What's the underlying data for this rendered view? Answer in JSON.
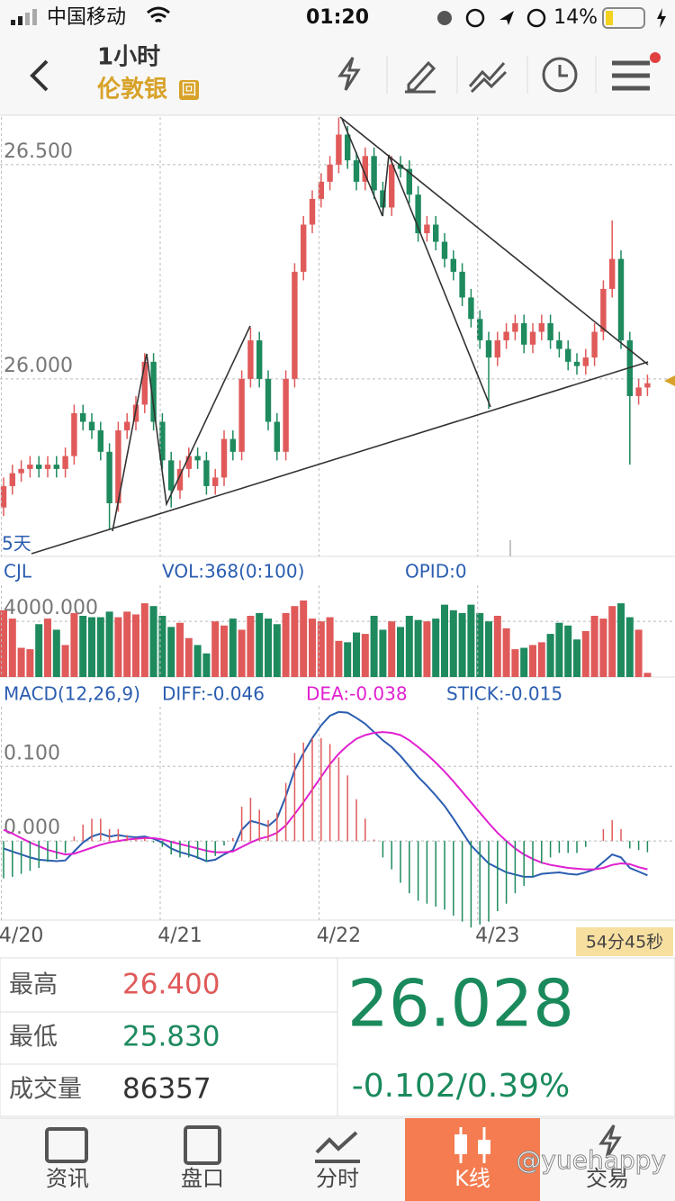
{
  "status_bar": {
    "carrier": "中国移动",
    "time": "01:20",
    "battery": "14%"
  },
  "header": {
    "interval": "1小时",
    "symbol": "伦敦银",
    "symbol_badge": "回"
  },
  "chart_data": [
    {
      "type": "candlestick",
      "label": "5天",
      "up_color": "#e05a5a",
      "down_color": "#1e8a5e",
      "open": [
        25.7,
        25.75,
        25.78,
        25.79,
        25.8,
        25.79,
        25.8,
        25.79,
        25.82,
        25.92,
        25.9,
        25.88,
        25.83,
        25.71,
        25.88,
        25.9,
        25.94,
        26.04,
        25.9,
        25.81,
        25.74,
        25.79,
        25.82,
        25.81,
        25.75,
        25.77,
        25.86,
        25.83,
        26.0,
        26.09,
        26.0,
        25.9,
        25.83,
        26.0,
        26.25,
        26.36,
        26.42,
        26.46,
        26.5,
        26.57,
        26.51,
        26.46,
        26.52,
        26.44,
        26.4,
        26.5,
        26.49,
        26.43,
        26.34,
        26.36,
        26.32,
        26.28,
        26.25,
        26.19,
        26.14,
        26.09,
        26.05,
        26.09,
        26.11,
        26.13,
        26.08,
        26.11,
        26.13,
        26.09,
        26.07,
        26.04,
        26.03,
        26.05,
        26.11,
        26.21,
        26.28,
        26.09,
        25.96,
        25.98
      ],
      "high": [
        25.77,
        25.8,
        25.81,
        25.82,
        25.82,
        25.82,
        25.82,
        25.84,
        25.94,
        25.94,
        25.92,
        25.9,
        25.85,
        25.9,
        25.92,
        25.96,
        26.06,
        26.06,
        25.92,
        25.83,
        25.81,
        25.84,
        25.84,
        25.83,
        25.79,
        25.88,
        25.88,
        26.02,
        26.12,
        26.11,
        26.02,
        25.92,
        26.02,
        26.27,
        26.38,
        26.44,
        26.48,
        26.52,
        26.61,
        26.59,
        26.53,
        26.54,
        26.54,
        26.46,
        26.52,
        26.52,
        26.51,
        26.45,
        26.38,
        26.38,
        26.34,
        26.3,
        26.27,
        26.21,
        26.16,
        26.11,
        26.11,
        26.13,
        26.15,
        26.15,
        26.13,
        26.15,
        26.15,
        26.11,
        26.09,
        26.06,
        26.07,
        26.13,
        26.23,
        26.37,
        26.3,
        26.11,
        26.0,
        26.01
      ],
      "low": [
        25.68,
        25.73,
        25.76,
        25.77,
        25.77,
        25.77,
        25.77,
        25.77,
        25.8,
        25.88,
        25.86,
        25.81,
        25.65,
        25.69,
        25.86,
        25.88,
        25.92,
        25.88,
        25.79,
        25.7,
        25.72,
        25.77,
        25.79,
        25.73,
        25.73,
        25.75,
        25.81,
        25.81,
        25.98,
        25.98,
        25.88,
        25.81,
        25.81,
        25.98,
        26.23,
        26.34,
        26.4,
        26.44,
        26.48,
        26.49,
        26.44,
        26.44,
        26.42,
        26.38,
        26.38,
        26.47,
        26.41,
        26.32,
        26.32,
        26.3,
        26.26,
        26.23,
        26.17,
        26.12,
        26.07,
        25.93,
        26.03,
        26.07,
        26.09,
        26.06,
        26.06,
        26.09,
        26.07,
        26.05,
        26.02,
        26.01,
        26.01,
        26.03,
        26.09,
        26.19,
        26.07,
        25.8,
        25.94,
        25.96
      ],
      "close": [
        25.75,
        25.78,
        25.79,
        25.8,
        25.79,
        25.8,
        25.79,
        25.82,
        25.92,
        25.9,
        25.88,
        25.83,
        25.71,
        25.88,
        25.9,
        25.94,
        26.04,
        25.9,
        25.81,
        25.74,
        25.79,
        25.82,
        25.81,
        25.75,
        25.77,
        25.86,
        25.83,
        26.0,
        26.09,
        26.0,
        25.9,
        25.83,
        26.0,
        26.25,
        26.36,
        26.42,
        26.46,
        26.5,
        26.57,
        26.51,
        26.46,
        26.52,
        26.44,
        26.4,
        26.5,
        26.49,
        26.43,
        26.34,
        26.36,
        26.32,
        26.28,
        26.25,
        26.19,
        26.14,
        26.09,
        26.05,
        26.09,
        26.11,
        26.13,
        26.08,
        26.11,
        26.13,
        26.09,
        26.07,
        26.04,
        26.03,
        26.05,
        26.11,
        26.21,
        26.28,
        26.09,
        25.96,
        25.98,
        25.99
      ],
      "ylim": [
        25.586,
        26.611
      ],
      "yticks": [
        {
          "value": 26,
          "label": "26.000"
        },
        {
          "value": 26.5,
          "label": "26.500"
        }
      ],
      "grid": true
    },
    {
      "type": "bar",
      "title": "CJL",
      "annotations": [
        "VOL:368(0:100)",
        "OPID:0"
      ],
      "values": [
        4800,
        4200,
        2100,
        2000,
        3800,
        4200,
        3400,
        2300,
        4600,
        4400,
        4300,
        4300,
        4700,
        4300,
        4700,
        4500,
        5300,
        5100,
        4400,
        3600,
        3900,
        2800,
        2300,
        1700,
        4000,
        3700,
        4200,
        3400,
        4400,
        4600,
        4200,
        3800,
        4600,
        5100,
        5500,
        4200,
        4000,
        4300,
        2600,
        2500,
        3200,
        3100,
        4400,
        3400,
        4000,
        3600,
        4400,
        4100,
        4000,
        4200,
        5200,
        4800,
        4600,
        5200,
        4600,
        4000,
        4400,
        3500,
        2000,
        2100,
        2300,
        2500,
        3100,
        3900,
        3700,
        2700,
        3300,
        4400,
        4200,
        5100,
        5300,
        4300,
        3400,
        300
      ],
      "ylim": [
        0,
        6600
      ],
      "yticks": [
        {
          "value": 4000,
          "label": "4000.000"
        }
      ],
      "grid": true
    },
    {
      "type": "line",
      "title": "MACD(12,26,9)",
      "up_color": "#e05a5a",
      "down_color": "#1e8a5e",
      "categories": [
        null,
        null,
        "4/20",
        null,
        null,
        null,
        null,
        null,
        null,
        null,
        null,
        null,
        null,
        null,
        null,
        null,
        null,
        null,
        null,
        null,
        "4/21",
        null,
        null,
        null,
        null,
        null,
        null,
        null,
        null,
        null,
        null,
        null,
        null,
        null,
        null,
        null,
        null,
        null,
        "4/22",
        null,
        null,
        null,
        null,
        null,
        null,
        null,
        null,
        null,
        null,
        null,
        null,
        null,
        null,
        null,
        null,
        null,
        "4/23",
        null,
        null,
        null,
        null,
        null,
        null,
        null,
        null,
        null,
        null,
        null,
        null,
        null,
        null,
        null,
        null,
        null
      ],
      "series": [
        {
          "name": "DIFF:-0.046",
          "color": "#2a5db0",
          "values": [
            -0.01,
            -0.014,
            -0.018,
            -0.022,
            -0.025,
            -0.026,
            -0.027,
            -0.026,
            -0.014,
            -0.002,
            0.006,
            0.01,
            0.006,
            0.008,
            0.006,
            0.005,
            0.006,
            0.003,
            -0.002,
            -0.01,
            -0.015,
            -0.018,
            -0.022,
            -0.027,
            -0.025,
            -0.018,
            -0.012,
            0.015,
            0.027,
            0.024,
            0.02,
            0.03,
            0.06,
            0.095,
            0.118,
            0.138,
            0.155,
            0.168,
            0.173,
            0.172,
            0.165,
            0.157,
            0.146,
            0.135,
            0.126,
            0.114,
            0.1,
            0.086,
            0.074,
            0.061,
            0.047,
            0.03,
            0.012,
            -0.006,
            -0.018,
            -0.03,
            -0.036,
            -0.042,
            -0.045,
            -0.048,
            -0.048,
            -0.044,
            -0.043,
            -0.042,
            -0.044,
            -0.045,
            -0.042,
            -0.038,
            -0.028,
            -0.018,
            -0.022,
            -0.036,
            -0.041,
            -0.046
          ]
        },
        {
          "name": "DEA:-0.038",
          "color": "#e020d0",
          "values": [
            0.015,
            0.01,
            0.004,
            -0.002,
            -0.007,
            -0.012,
            -0.015,
            -0.018,
            -0.017,
            -0.013,
            -0.009,
            -0.005,
            -0.002,
            0.0,
            0.002,
            0.003,
            0.004,
            0.004,
            0.002,
            -0.001,
            -0.004,
            -0.007,
            -0.01,
            -0.013,
            -0.015,
            -0.015,
            -0.014,
            -0.008,
            -0.002,
            0.003,
            0.006,
            0.011,
            0.021,
            0.036,
            0.052,
            0.069,
            0.086,
            0.103,
            0.117,
            0.128,
            0.137,
            0.142,
            0.145,
            0.146,
            0.145,
            0.142,
            0.135,
            0.126,
            0.116,
            0.105,
            0.093,
            0.08,
            0.066,
            0.052,
            0.038,
            0.024,
            0.011,
            0.0,
            -0.01,
            -0.018,
            -0.024,
            -0.029,
            -0.032,
            -0.034,
            -0.036,
            -0.037,
            -0.038,
            -0.038,
            -0.036,
            -0.032,
            -0.03,
            -0.031,
            -0.035,
            -0.038
          ]
        },
        {
          "name": "STICK:-0.015",
          "type": "bar",
          "values": [
            -0.05,
            -0.048,
            -0.044,
            -0.04,
            -0.036,
            -0.028,
            -0.024,
            -0.016,
            0.006,
            0.022,
            0.03,
            0.03,
            0.016,
            0.016,
            0.008,
            0.004,
            0.004,
            -0.002,
            -0.008,
            -0.018,
            -0.022,
            -0.022,
            -0.024,
            -0.028,
            -0.02,
            -0.006,
            0.004,
            0.046,
            0.058,
            0.042,
            0.028,
            0.038,
            0.078,
            0.118,
            0.132,
            0.138,
            0.138,
            0.13,
            0.112,
            0.088,
            0.056,
            0.03,
            0.002,
            -0.022,
            -0.038,
            -0.056,
            -0.07,
            -0.08,
            -0.084,
            -0.088,
            -0.092,
            -0.1,
            -0.108,
            -0.116,
            -0.112,
            -0.108,
            -0.094,
            -0.084,
            -0.07,
            -0.06,
            -0.048,
            -0.03,
            -0.022,
            -0.016,
            -0.016,
            -0.016,
            -0.008,
            0.0,
            0.016,
            0.028,
            0.016,
            -0.01,
            -0.012,
            -0.015
          ]
        }
      ],
      "ylim": [
        -0.106,
        0.18
      ],
      "yticks": [
        {
          "value": 0,
          "label": "0.000"
        },
        {
          "value": 0.1,
          "label": "0.100"
        }
      ],
      "grid": true
    }
  ],
  "countdown": "54分45秒",
  "stats": {
    "rows": [
      [
        "最高",
        "26.400"
      ],
      [
        "最低",
        "25.830"
      ],
      [
        "成交量",
        "86357"
      ]
    ],
    "price": "26.028",
    "change": "-0.102/0.39%"
  },
  "tabs": [
    "资讯",
    "盘口",
    "分时",
    "K线",
    "交易"
  ],
  "watermark": "@yuehappy"
}
